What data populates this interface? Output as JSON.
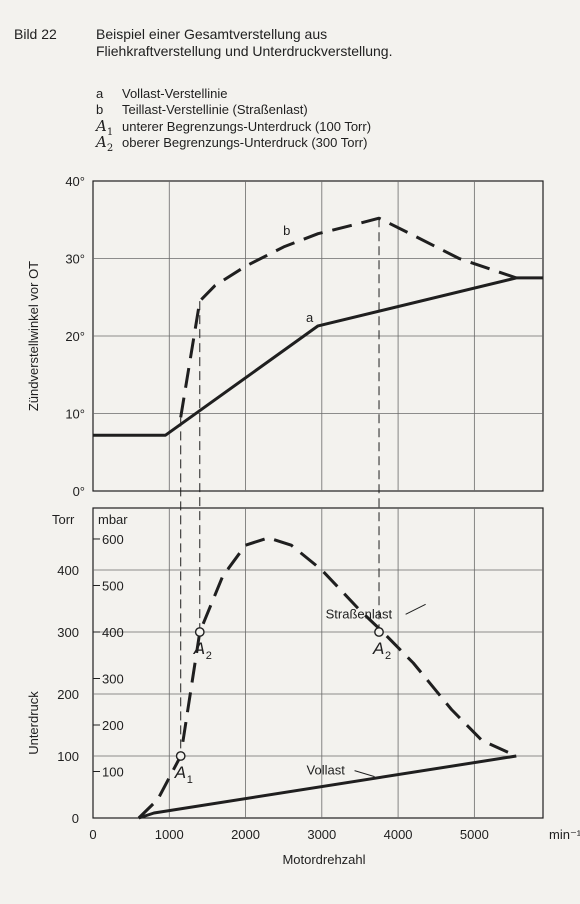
{
  "figure": {
    "number": "Bild 22",
    "title_line1": "Beispiel einer Gesamtverstellung aus",
    "title_line2": "Fliehkraftverstellung und Unterdruckverstellung.",
    "legend": [
      {
        "key": "a",
        "sub": "",
        "text": "Vollast-Verstellinie"
      },
      {
        "key": "b",
        "sub": "",
        "text": "Teillast-Verstellinie (Straßenlast)"
      },
      {
        "key": "A",
        "sub": "1",
        "text": "unterer Begrenzungs-Unterdruck (100 Torr)"
      },
      {
        "key": "A",
        "sub": "2",
        "text": "oberer Begrenzungs-Unterdruck (300 Torr)"
      }
    ]
  },
  "chart_data": [
    {
      "type": "line",
      "ylabel": "Zündverstellwinkel vor OT",
      "xlim": [
        0,
        5900
      ],
      "ylim": [
        0,
        40
      ],
      "y_ticks": [
        0,
        10,
        20,
        30,
        40
      ],
      "y_tick_labels": [
        "0°",
        "10°",
        "20°",
        "30°",
        "40°"
      ],
      "grid": true,
      "series": [
        {
          "name": "a",
          "style": "solid",
          "x": [
            0,
            950,
            2950,
            5550,
            5900
          ],
          "y": [
            7.2,
            7.2,
            21.3,
            27.5,
            27.5
          ]
        },
        {
          "name": "b",
          "style": "dashed",
          "x": [
            1150,
            1400,
            1600,
            2000,
            2500,
            2950,
            3400,
            3750,
            4200,
            4800,
            5550
          ],
          "y": [
            9.5,
            24.5,
            26.5,
            29,
            31.5,
            33.2,
            34.3,
            35.2,
            33,
            30,
            27.5
          ]
        }
      ],
      "annotations": [
        {
          "text": "a",
          "x": 2950,
          "y": 21.3
        },
        {
          "text": "b",
          "x": 2650,
          "y": 32.5
        }
      ],
      "guides_x": [
        1150,
        1400,
        3750
      ]
    },
    {
      "type": "line",
      "xlabel": "Motordrehzahl",
      "ylabel": "Unterdruck",
      "xlim": [
        0,
        5900
      ],
      "ylim": [
        0,
        500
      ],
      "x_ticks": [
        0,
        1000,
        2000,
        3000,
        4000,
        5000
      ],
      "x_tick_labels": [
        "0",
        "1000",
        "2000",
        "3000",
        "4000",
        "5000"
      ],
      "x_unit": "min⁻¹",
      "y_ticks": [
        0,
        100,
        200,
        300,
        400
      ],
      "y_tick_labels": [
        "0",
        "100",
        "200",
        "300",
        "400"
      ],
      "y_unit": "Torr",
      "y2_unit": "mbar",
      "y2_ticks": [
        100,
        200,
        300,
        400,
        500,
        600
      ],
      "y2_tick_labels": [
        "100",
        "200",
        "300",
        "400",
        "500",
        "600"
      ],
      "grid": true,
      "series": [
        {
          "name": "Straßenlast",
          "style": "dashed",
          "x": [
            600,
            850,
            1150,
            1400,
            1700,
            2000,
            2300,
            2600,
            3000,
            3500,
            3800,
            4200,
            4700,
            5100,
            5550
          ],
          "y": [
            0,
            30,
            100,
            300,
            390,
            440,
            452,
            440,
            400,
            335,
            300,
            250,
            175,
            125,
            100
          ]
        },
        {
          "name": "Vollast",
          "style": "solid",
          "x": [
            600,
            800,
            5550
          ],
          "y": [
            0,
            8,
            100
          ]
        }
      ],
      "points": [
        {
          "label": "A",
          "sub": "1",
          "x": 1150,
          "y": 100
        },
        {
          "label": "A",
          "sub": "2",
          "x": 1400,
          "y": 300
        },
        {
          "label": "A",
          "sub": "2",
          "x": 3750,
          "y": 300
        }
      ],
      "series_labels": [
        {
          "text": "Straßenlast",
          "x": 3050,
          "y": 322
        },
        {
          "text": "Vollast",
          "x": 2800,
          "y": 70
        }
      ],
      "guides_x": [
        1150,
        1400,
        3750
      ]
    }
  ]
}
